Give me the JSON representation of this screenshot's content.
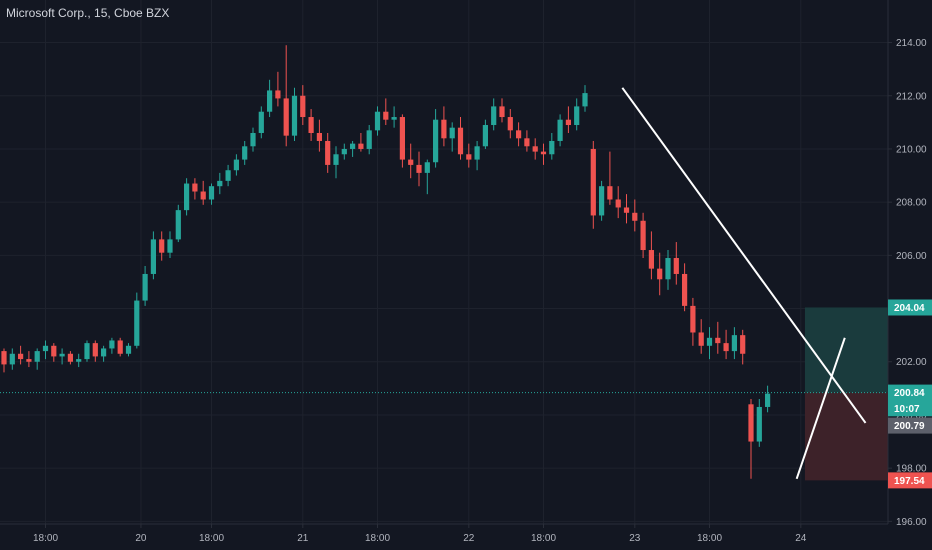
{
  "header": {
    "symbol_title": "Microsoft Corp., 15, Cboe BZX"
  },
  "colors": {
    "background": "#131722",
    "grid": "#1e222d",
    "up": "#26a69a",
    "down": "#ef5350",
    "axis_text": "#b2b5be",
    "trendline": "#ffffff",
    "price_line": "#26a69a",
    "profit_zone": "#1a3b3d",
    "loss_zone": "#3d2229"
  },
  "chart_data": {
    "type": "candlestick",
    "ylim": [
      195.9,
      215.6
    ],
    "y_ticks": [
      "196.00",
      "198.00",
      "200.00",
      "202.00",
      "204.00",
      "206.00",
      "208.00",
      "210.00",
      "212.00",
      "214.00"
    ],
    "y_tick_values": [
      196,
      198,
      200,
      202,
      204,
      206,
      208,
      210,
      212,
      214
    ],
    "x_ticks": [
      "18:00",
      "20",
      "18:00",
      "21",
      "18:00",
      "22",
      "18:00",
      "23",
      "18:00",
      "24"
    ],
    "x_tick_positions": [
      5,
      16.5,
      25,
      36,
      45,
      56,
      65,
      76,
      85,
      96
    ],
    "bars_total": 105,
    "candles": [
      [
        202.4,
        202.5,
        201.6,
        201.9
      ],
      [
        201.9,
        202.5,
        201.7,
        202.3
      ],
      [
        202.3,
        202.6,
        201.9,
        202.1
      ],
      [
        202.1,
        202.4,
        201.8,
        202.0
      ],
      [
        202.0,
        202.5,
        201.7,
        202.4
      ],
      [
        202.4,
        202.8,
        202.1,
        202.6
      ],
      [
        202.6,
        202.7,
        202.0,
        202.2
      ],
      [
        202.2,
        202.5,
        201.9,
        202.3
      ],
      [
        202.3,
        202.4,
        201.9,
        202.0
      ],
      [
        202.0,
        202.3,
        201.8,
        202.1
      ],
      [
        202.1,
        202.8,
        202.0,
        202.7
      ],
      [
        202.7,
        202.8,
        202.0,
        202.2
      ],
      [
        202.2,
        202.6,
        202.0,
        202.5
      ],
      [
        202.5,
        202.9,
        202.3,
        202.8
      ],
      [
        202.8,
        202.9,
        202.2,
        202.3
      ],
      [
        202.3,
        202.7,
        202.2,
        202.6
      ],
      [
        202.6,
        204.6,
        202.5,
        204.3
      ],
      [
        204.3,
        205.6,
        204.1,
        205.3
      ],
      [
        205.3,
        206.9,
        205.1,
        206.6
      ],
      [
        206.6,
        206.9,
        205.8,
        206.1
      ],
      [
        206.1,
        206.9,
        205.9,
        206.6
      ],
      [
        206.6,
        207.9,
        206.5,
        207.7
      ],
      [
        207.7,
        208.9,
        207.5,
        208.7
      ],
      [
        208.7,
        208.9,
        208.1,
        208.4
      ],
      [
        208.4,
        208.8,
        207.9,
        208.1
      ],
      [
        208.1,
        208.7,
        207.9,
        208.6
      ],
      [
        208.6,
        209.1,
        208.3,
        208.8
      ],
      [
        208.8,
        209.4,
        208.6,
        209.2
      ],
      [
        209.2,
        209.8,
        209.0,
        209.6
      ],
      [
        209.6,
        210.3,
        209.4,
        210.1
      ],
      [
        210.1,
        210.8,
        209.9,
        210.6
      ],
      [
        210.6,
        211.6,
        210.4,
        211.4
      ],
      [
        211.4,
        212.6,
        211.2,
        212.2
      ],
      [
        212.2,
        212.9,
        211.6,
        211.9
      ],
      [
        211.9,
        213.9,
        210.1,
        210.5
      ],
      [
        210.5,
        212.3,
        210.3,
        212.0
      ],
      [
        212.0,
        212.4,
        210.9,
        211.2
      ],
      [
        211.2,
        211.5,
        210.3,
        210.6
      ],
      [
        210.6,
        211.1,
        209.9,
        210.3
      ],
      [
        210.3,
        210.6,
        209.1,
        209.4
      ],
      [
        209.4,
        210.1,
        208.9,
        209.8
      ],
      [
        209.8,
        210.2,
        209.6,
        210.0
      ],
      [
        210.0,
        210.3,
        209.7,
        210.2
      ],
      [
        210.2,
        210.6,
        209.9,
        210.0
      ],
      [
        210.0,
        210.9,
        209.8,
        210.7
      ],
      [
        210.7,
        211.6,
        210.5,
        211.4
      ],
      [
        211.4,
        211.9,
        210.9,
        211.1
      ],
      [
        211.1,
        211.6,
        210.8,
        211.2
      ],
      [
        211.2,
        211.3,
        209.3,
        209.6
      ],
      [
        209.6,
        210.2,
        208.9,
        209.4
      ],
      [
        209.4,
        209.9,
        208.6,
        209.1
      ],
      [
        209.1,
        209.6,
        208.3,
        209.5
      ],
      [
        209.5,
        211.5,
        209.3,
        211.1
      ],
      [
        211.1,
        211.6,
        210.1,
        210.4
      ],
      [
        210.4,
        211.0,
        209.9,
        210.8
      ],
      [
        210.8,
        211.2,
        209.6,
        209.8
      ],
      [
        209.8,
        210.2,
        209.3,
        209.6
      ],
      [
        209.6,
        210.3,
        209.2,
        210.1
      ],
      [
        210.1,
        211.1,
        210.0,
        210.9
      ],
      [
        210.9,
        211.9,
        210.7,
        211.6
      ],
      [
        211.6,
        211.9,
        211.0,
        211.2
      ],
      [
        211.2,
        211.5,
        210.4,
        210.7
      ],
      [
        210.7,
        211.0,
        210.1,
        210.4
      ],
      [
        210.4,
        210.7,
        209.9,
        210.1
      ],
      [
        210.1,
        210.4,
        209.6,
        209.9
      ],
      [
        209.9,
        210.2,
        209.4,
        209.8
      ],
      [
        209.8,
        210.6,
        209.6,
        210.3
      ],
      [
        210.3,
        211.3,
        210.1,
        211.1
      ],
      [
        211.1,
        211.6,
        210.6,
        210.9
      ],
      [
        210.9,
        211.9,
        210.7,
        211.6
      ],
      [
        211.6,
        212.4,
        211.4,
        212.1
      ],
      [
        210.0,
        210.3,
        207.0,
        207.5
      ],
      [
        207.5,
        208.8,
        207.3,
        208.6
      ],
      [
        208.6,
        209.9,
        207.9,
        208.1
      ],
      [
        208.1,
        208.6,
        207.4,
        207.8
      ],
      [
        207.8,
        208.3,
        207.2,
        207.6
      ],
      [
        207.6,
        208.1,
        206.9,
        207.3
      ],
      [
        207.3,
        207.6,
        205.9,
        206.2
      ],
      [
        206.2,
        206.9,
        205.1,
        205.5
      ],
      [
        205.5,
        206.1,
        204.5,
        205.1
      ],
      [
        205.1,
        206.2,
        204.7,
        205.9
      ],
      [
        205.9,
        206.5,
        204.9,
        205.3
      ],
      [
        205.3,
        205.7,
        203.9,
        204.1
      ],
      [
        204.1,
        204.4,
        202.6,
        203.1
      ],
      [
        203.1,
        203.6,
        202.3,
        202.6
      ],
      [
        202.6,
        203.3,
        202.1,
        202.9
      ],
      [
        202.9,
        203.5,
        202.3,
        202.7
      ],
      [
        202.7,
        203.2,
        202.1,
        202.4
      ],
      [
        202.4,
        203.3,
        202.1,
        203.0
      ],
      [
        203.0,
        203.2,
        201.9,
        202.3
      ],
      [
        200.4,
        200.6,
        197.6,
        199.0
      ],
      [
        199.0,
        200.6,
        198.8,
        200.3
      ],
      [
        200.3,
        201.1,
        200.1,
        200.8
      ]
    ]
  },
  "trendlines": [
    {
      "from": {
        "bar": 74.5,
        "price": 212.3
      },
      "to": {
        "bar": 103.8,
        "price": 199.7
      }
    },
    {
      "from": {
        "bar": 95.5,
        "price": 197.6
      },
      "to": {
        "bar": 101.3,
        "price": 202.9
      }
    }
  ],
  "position": {
    "entry_price": 200.84,
    "target_price": 204.04,
    "stop_price": 197.54,
    "start_bar": 96.5,
    "end_bar": 105
  },
  "price_badges": {
    "target": {
      "label": "204.04",
      "price": 204.04,
      "color": "#26a69a"
    },
    "last": {
      "label": "200.84",
      "price": 200.84,
      "color": "#26a69a"
    },
    "countdown": {
      "label": "10:07",
      "price": 200.25,
      "color": "#26a69a"
    },
    "cursor": {
      "label": "200.79",
      "price": 199.6,
      "color": "#5d606b"
    },
    "stop": {
      "label": "197.54",
      "price": 197.54,
      "color": "#ef5350"
    }
  }
}
